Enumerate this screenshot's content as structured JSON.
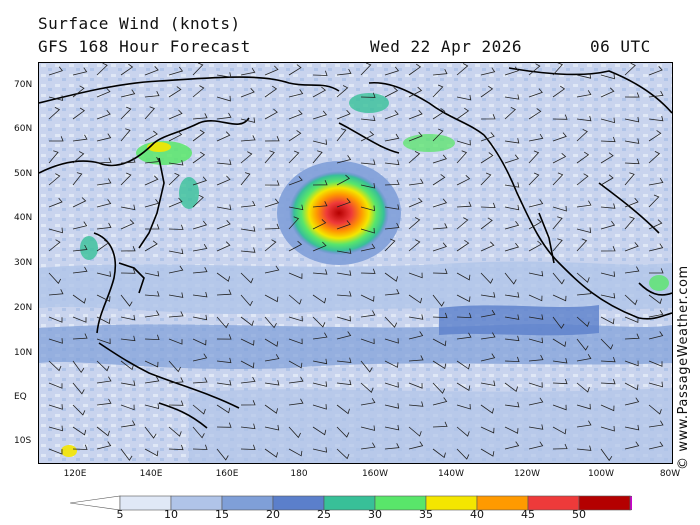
{
  "header": {
    "title": "Surface Wind (knots)",
    "forecast": "GFS 168 Hour Forecast",
    "date": "Wed 22 Apr 2026",
    "time": "06 UTC"
  },
  "map": {
    "region": "North Pacific",
    "lat_labels": [
      "70N",
      "60N",
      "50N",
      "40N",
      "30N",
      "20N",
      "10N",
      "EQ",
      "10S"
    ],
    "lon_labels": [
      "120E",
      "140E",
      "160E",
      "180",
      "160W",
      "140W",
      "120W",
      "100W",
      "80W"
    ],
    "features": [
      "coastlines",
      "wind barbs",
      "wind speed shading"
    ]
  },
  "credit": "© www.PassageWeather.com",
  "legend": {
    "ticks": [
      "5",
      "10",
      "15",
      "20",
      "25",
      "30",
      "35",
      "40",
      "45",
      "50"
    ],
    "colors": [
      "#ffffff",
      "#e0e8f6",
      "#b0c4e8",
      "#7f9fd8",
      "#5b7fcb",
      "#38c098",
      "#59e66a",
      "#f4e600",
      "#ff9a00",
      "#ee3a3a",
      "#b40000",
      "#cc00cc"
    ]
  }
}
